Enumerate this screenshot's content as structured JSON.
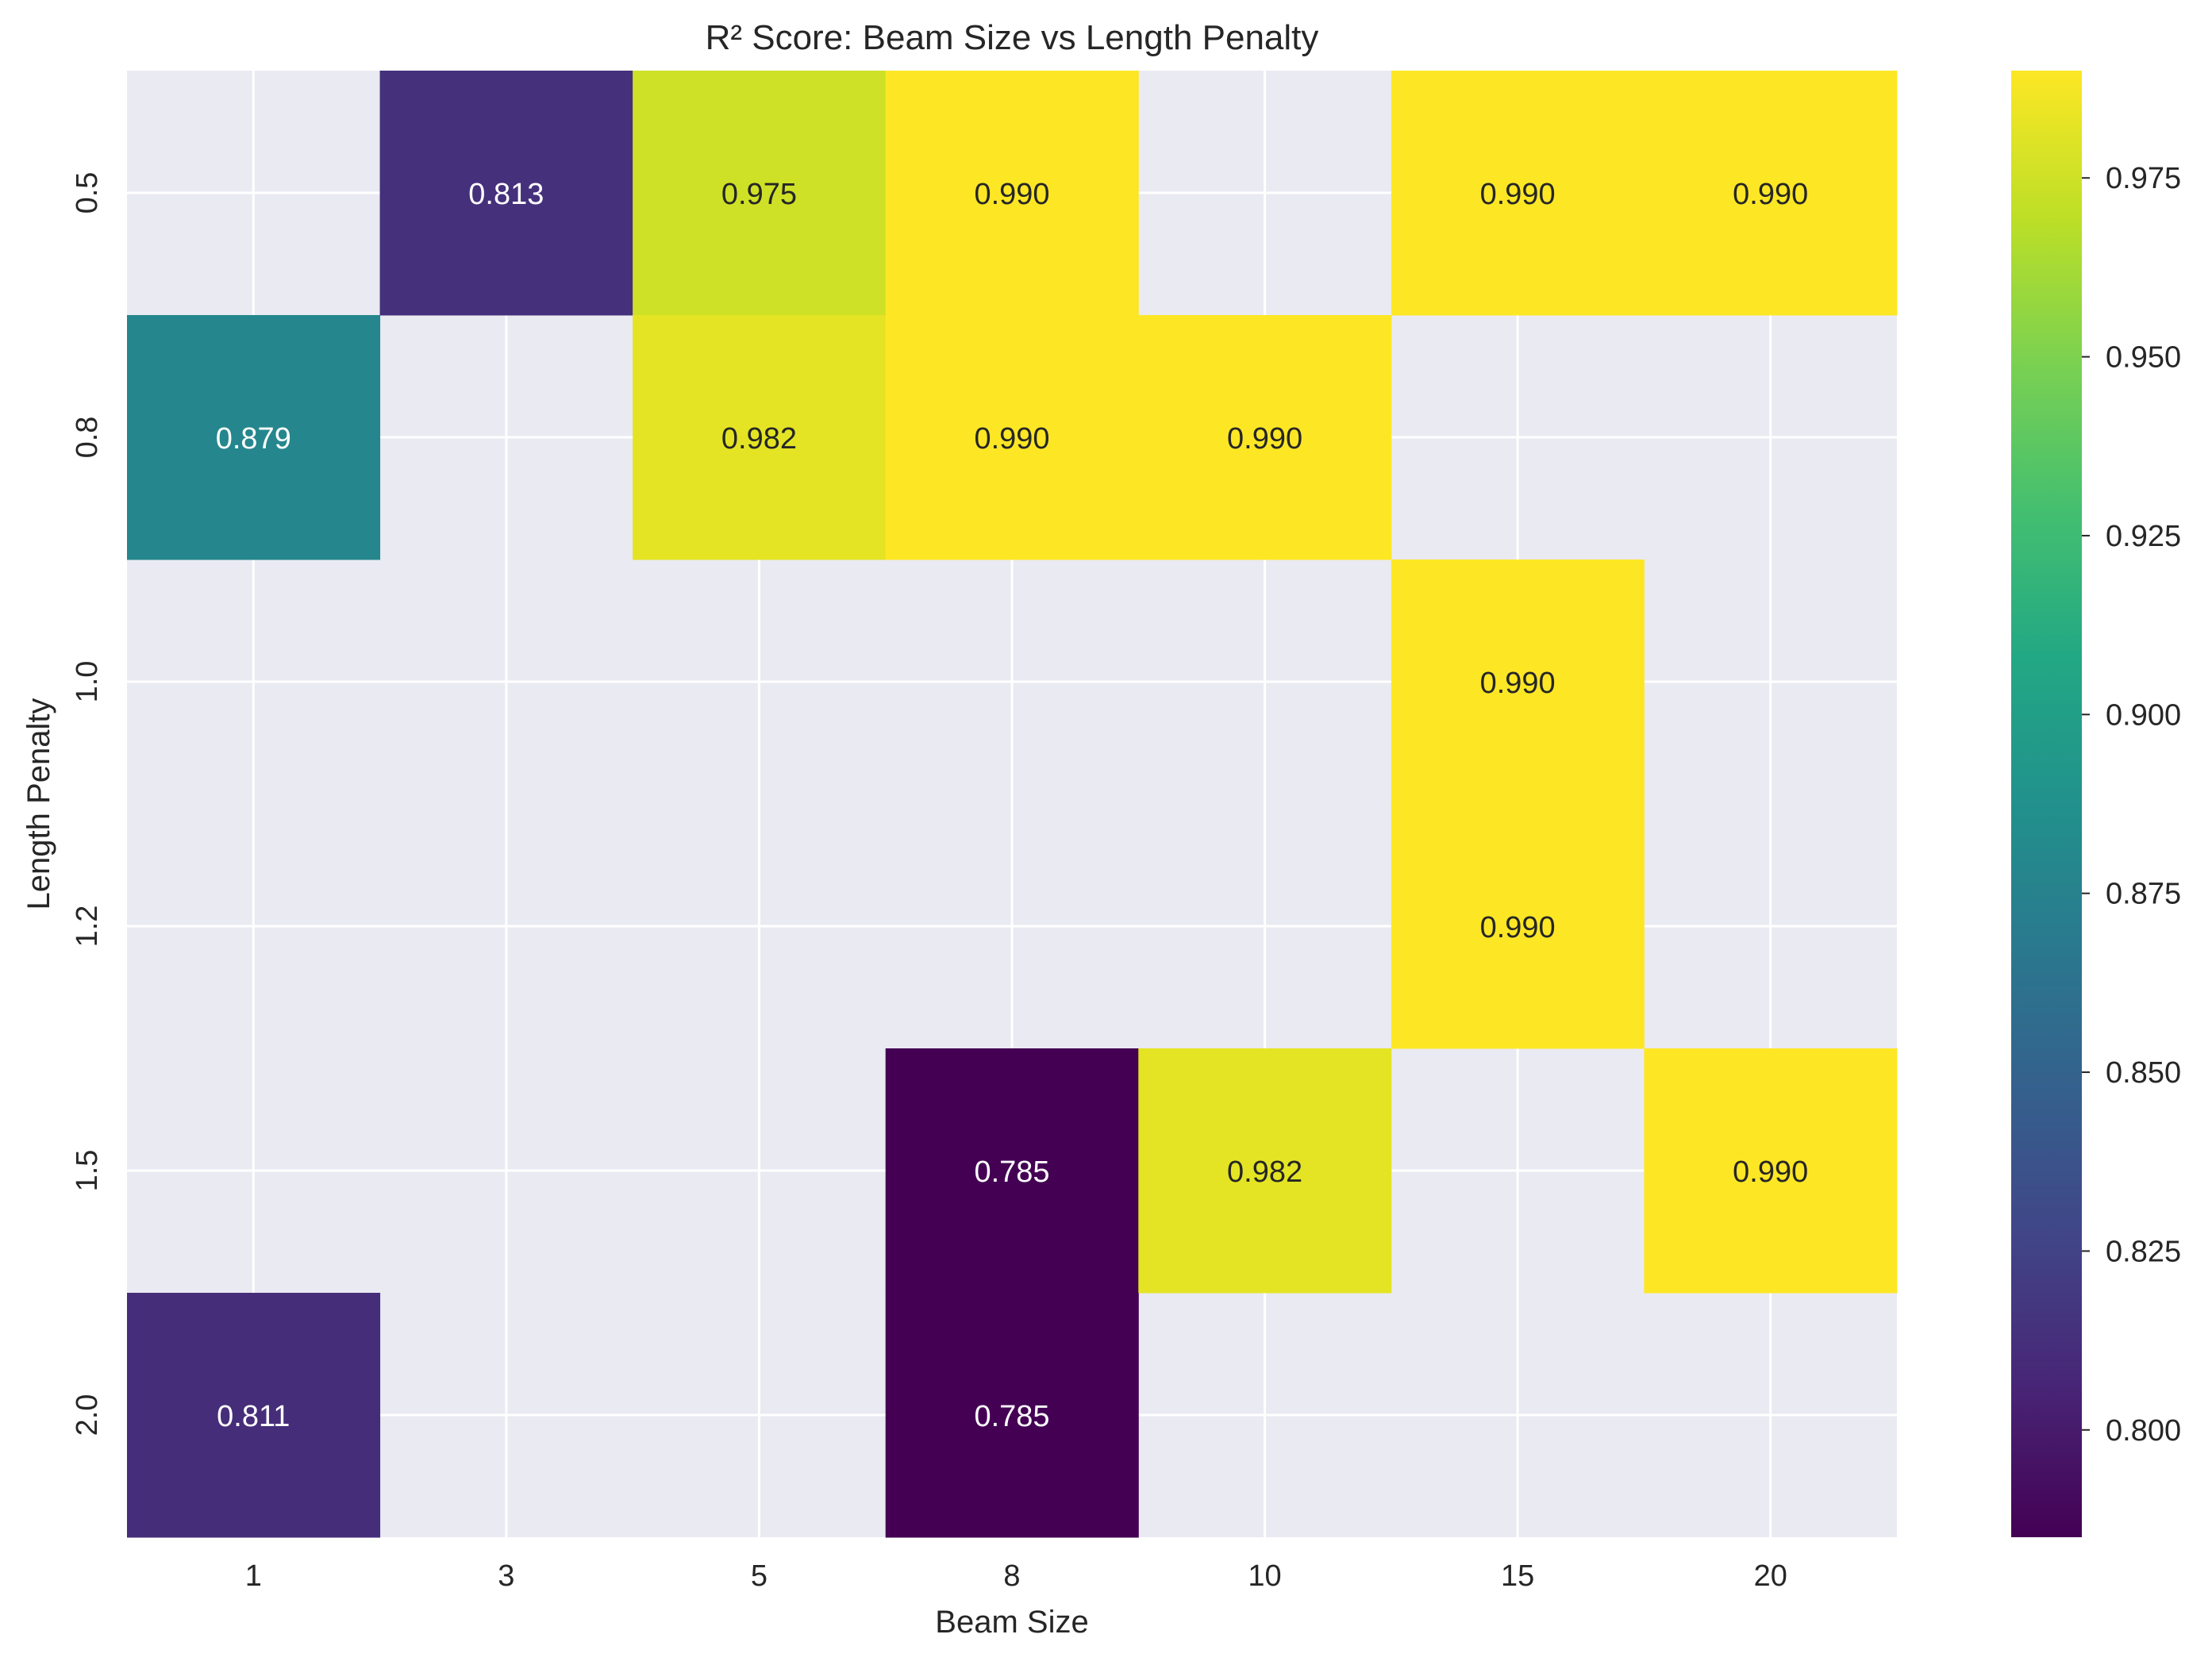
{
  "chart_data": {
    "type": "heatmap",
    "title": "R² Score: Beam Size vs Length Penalty",
    "xlabel": "Beam Size",
    "ylabel": "Length Penalty",
    "x_categories": [
      "1",
      "3",
      "5",
      "8",
      "10",
      "15",
      "20"
    ],
    "y_categories": [
      "0.5",
      "0.8",
      "1.0",
      "1.2",
      "1.5",
      "2.0"
    ],
    "values": [
      [
        null,
        0.813,
        0.975,
        0.99,
        null,
        0.99,
        0.99
      ],
      [
        0.879,
        null,
        0.982,
        0.99,
        0.99,
        null,
        null
      ],
      [
        null,
        null,
        null,
        null,
        null,
        0.99,
        null
      ],
      [
        null,
        null,
        null,
        null,
        null,
        0.99,
        null
      ],
      [
        null,
        null,
        null,
        0.785,
        0.982,
        null,
        0.99
      ],
      [
        0.811,
        null,
        null,
        0.785,
        null,
        null,
        null
      ]
    ],
    "value_format": "0.000",
    "colormap": "viridis",
    "colorbar": {
      "vmin": 0.785,
      "vmax": 0.99,
      "ticks": [
        "0.800",
        "0.825",
        "0.850",
        "0.875",
        "0.900",
        "0.925",
        "0.950",
        "0.975"
      ]
    },
    "grid": true,
    "background_color": "#eaeaf2",
    "grid_color": "#ffffff"
  }
}
